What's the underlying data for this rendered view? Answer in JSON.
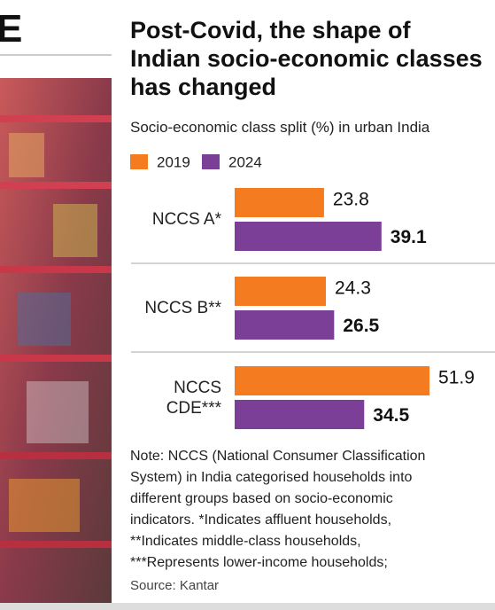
{
  "heading_fragment": "E",
  "chart_data": {
    "type": "hbar",
    "title": "Post-Covid, the shape of Indian socio-economic classes has changed",
    "subtitle": "Socio-economic class split (%) in urban India",
    "categories": [
      "NCCS A*",
      "NCCS B**",
      "NCCS CDE***"
    ],
    "series": [
      {
        "name": "2019",
        "color": "#f47b20",
        "values": [
          23.8,
          24.3,
          51.9
        ]
      },
      {
        "name": "2024",
        "color": "#7b3f98",
        "values": [
          39.1,
          26.5,
          34.5
        ]
      }
    ],
    "note_lines": [
      "Note: NCCS (National Consumer Classification",
      "System) in India categorised households into",
      "different groups based on socio-economic",
      "indicators. *Indicates affluent households,",
      "**Indicates middle-class households,",
      "***Represents lower-income households;"
    ],
    "source": "Source: Kantar"
  }
}
